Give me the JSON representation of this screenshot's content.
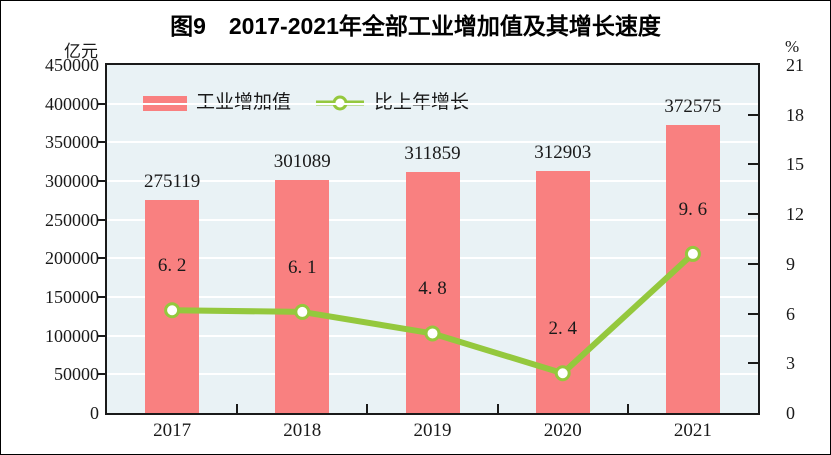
{
  "figure": {
    "title": "图9　2017-2021年全部工业增加值及其增长速度"
  },
  "legend": {
    "items": [
      {
        "label": "工业增加值",
        "type": "bar"
      },
      {
        "label": "比上年增长",
        "type": "line"
      }
    ]
  },
  "chart_data": {
    "type": "bar+line",
    "title": "图9　2017-2021年全部工业增加值及其增长速度",
    "categories": [
      "2017",
      "2018",
      "2019",
      "2020",
      "2021"
    ],
    "series": [
      {
        "name": "工业增加值",
        "type": "bar",
        "axis": "left",
        "color": "#F98080",
        "values": [
          275119,
          301089,
          311859,
          312903,
          372575
        ],
        "labels": [
          "275119",
          "301089",
          "311859",
          "312903",
          "372575"
        ]
      },
      {
        "name": "比上年增长",
        "type": "line",
        "axis": "right",
        "color": "#94C83D",
        "marker": "circle-white-fill-green-ring",
        "values": [
          6.2,
          6.1,
          4.8,
          2.4,
          9.6
        ],
        "labels": [
          "6. 2",
          "6. 1",
          "4. 8",
          "2. 4",
          "9. 6"
        ]
      }
    ],
    "left_axis": {
      "label": "亿元",
      "min": 0,
      "max": 450000,
      "step": 50000,
      "ticks_top_to_bottom": [
        "450000",
        "400000",
        "350000",
        "300000",
        "250000",
        "200000",
        "150000",
        "100000",
        "50000",
        "0"
      ]
    },
    "right_axis": {
      "label": "%",
      "min": 0,
      "max": 21,
      "step": 3,
      "ticks_top_to_bottom": [
        "21",
        "18",
        "15",
        "12",
        "9",
        "6",
        "3",
        "0"
      ]
    },
    "grid": true,
    "legend_position": "top-inside",
    "colors": {
      "plot_bg": "#E9F2F5",
      "grid": "#FFFFFF",
      "axis": "#1A1A1A",
      "text": "#1A1A1A"
    }
  }
}
